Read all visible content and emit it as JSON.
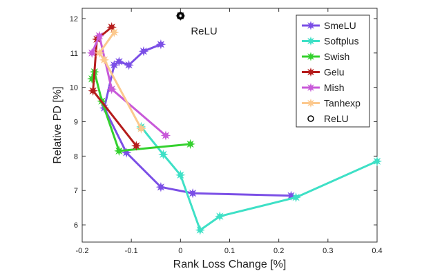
{
  "chart_data": {
    "type": "line",
    "title": "",
    "xlabel": "Rank Loss Change [%]",
    "ylabel": "Relative PD [%]",
    "xlim": [
      -0.2,
      0.4
    ],
    "ylim": [
      5.5,
      12.3
    ],
    "xticks": [
      -0.2,
      -0.1,
      0,
      0.1,
      0.2,
      0.3,
      0.4
    ],
    "xtick_labels": [
      "-0.2",
      "-0.1",
      "0",
      "0.1",
      "0.2",
      "0.3",
      "0.4"
    ],
    "yticks": [
      6,
      7,
      8,
      9,
      10,
      11,
      12
    ],
    "ytick_labels": [
      "6",
      "7",
      "8",
      "9",
      "10",
      "11",
      "12"
    ],
    "grid": false,
    "legend_position": "top-right",
    "series": [
      {
        "name": "SmeLU",
        "color": "#7b4fe6",
        "marker": "star",
        "x": [
          -0.04,
          -0.075,
          -0.105,
          -0.125,
          -0.135,
          -0.155,
          -0.11,
          -0.04,
          0.025,
          0.225
        ],
        "y": [
          11.25,
          11.05,
          10.65,
          10.75,
          10.65,
          9.4,
          8.1,
          7.1,
          6.92,
          6.85
        ]
      },
      {
        "name": "Softplus",
        "color": "#3ee0c6",
        "marker": "star",
        "x": [
          -0.08,
          -0.035,
          0.0,
          0.04,
          0.08,
          0.235,
          0.4
        ],
        "y": [
          8.85,
          8.05,
          7.45,
          5.85,
          6.25,
          6.8,
          7.85
        ]
      },
      {
        "name": "Swish",
        "color": "#34d12e",
        "marker": "star",
        "x": [
          -0.18,
          -0.175,
          -0.16,
          -0.125,
          0.02
        ],
        "y": [
          10.25,
          10.45,
          9.6,
          8.15,
          8.35
        ]
      },
      {
        "name": "Gelu",
        "color": "#b51c1c",
        "marker": "star",
        "x": [
          -0.14,
          -0.17,
          -0.178,
          -0.09
        ],
        "y": [
          11.75,
          11.4,
          9.9,
          8.3
        ]
      },
      {
        "name": "Mish",
        "color": "#c85ad9",
        "marker": "star",
        "x": [
          -0.18,
          -0.165,
          -0.14,
          -0.03
        ],
        "y": [
          11.0,
          11.5,
          9.95,
          8.6
        ]
      },
      {
        "name": "Tanhexp",
        "color": "#fcc98e",
        "marker": "star",
        "x": [
          -0.135,
          -0.165,
          -0.155,
          -0.08
        ],
        "y": [
          11.6,
          11.0,
          10.8,
          8.8
        ]
      }
    ],
    "reference_point": {
      "name": "ReLU",
      "x": 0.0,
      "y": 12.08,
      "label": "ReLU",
      "color": "#000000"
    }
  }
}
